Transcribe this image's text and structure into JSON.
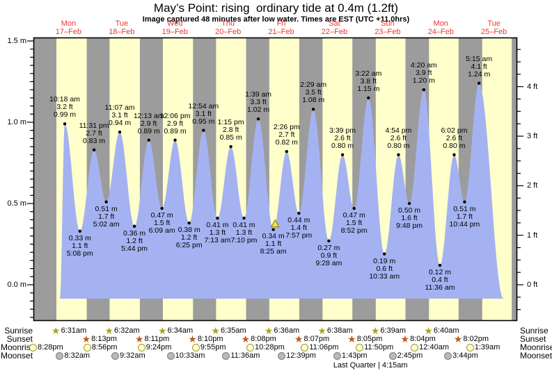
{
  "header": {
    "title": "May’s Point: rising  ordinary tide at 0.4m (1.2ft)",
    "subtitle": "Image captured 48 minutes after low water. Times are EST (UTC +11.0hrs)"
  },
  "chart_data": {
    "type": "area",
    "title": "May’s Point: rising  ordinary tide at 0.4m (1.2ft)",
    "ylabel_left": "metres",
    "ylabel_right": "feet",
    "ylim_m": [
      -0.22,
      1.52
    ],
    "grid": false,
    "y_axis_left_labels": [
      "1.5 m",
      "1.0 m",
      "0.5 m",
      "0.0 m"
    ],
    "y_axis_left_values": [
      1.5,
      1.0,
      0.5,
      0.0
    ],
    "y_axis_right_labels": [
      "4 ft",
      "3 ft",
      "2 ft",
      "1 ft",
      "0 ft"
    ],
    "y_axis_right_values": [
      4,
      3,
      2,
      1,
      0
    ],
    "days": [
      {
        "name": "Mon",
        "date": "17–Feb"
      },
      {
        "name": "Tue",
        "date": "18–Feb"
      },
      {
        "name": "Wed",
        "date": "19–Feb"
      },
      {
        "name": "Thu",
        "date": "20–Feb"
      },
      {
        "name": "Fri",
        "date": "21–Feb"
      },
      {
        "name": "Sat",
        "date": "22–Feb"
      },
      {
        "name": "Sun",
        "date": "23–Feb"
      },
      {
        "name": "Mon",
        "date": "24–Feb"
      },
      {
        "name": "Tue",
        "date": "25–Feb"
      }
    ],
    "tide_events": [
      {
        "day": 0,
        "time": "10:18 am",
        "ft": 3.2,
        "m": 0.99,
        "type": "high"
      },
      {
        "day": 0,
        "time": "5:08 pm",
        "ft": 1.1,
        "m": 0.33,
        "type": "low"
      },
      {
        "day": 0,
        "time": "11:31 pm",
        "ft": 2.7,
        "m": 0.83,
        "type": "high"
      },
      {
        "day": 1,
        "time": "5:02 am",
        "ft": 1.7,
        "m": 0.51,
        "type": "low"
      },
      {
        "day": 1,
        "time": "11:07 am",
        "ft": 3.1,
        "m": 0.94,
        "type": "high"
      },
      {
        "day": 1,
        "time": "5:44 pm",
        "ft": 1.2,
        "m": 0.36,
        "type": "low"
      },
      {
        "day": 2,
        "time": "12:13 am",
        "ft": 2.9,
        "m": 0.89,
        "type": "high"
      },
      {
        "day": 2,
        "time": "6:09 am",
        "ft": 1.5,
        "m": 0.47,
        "type": "low"
      },
      {
        "day": 2,
        "time": "12:06 pm",
        "ft": 2.9,
        "m": 0.89,
        "type": "high"
      },
      {
        "day": 2,
        "time": "6:25 pm",
        "ft": 1.2,
        "m": 0.38,
        "type": "low"
      },
      {
        "day": 3,
        "time": "12:54 am",
        "ft": 3.1,
        "m": 0.95,
        "type": "high"
      },
      {
        "day": 3,
        "time": "7:13 am",
        "ft": 1.3,
        "m": 0.41,
        "type": "low"
      },
      {
        "day": 3,
        "time": "1:15 pm",
        "ft": 2.8,
        "m": 0.85,
        "type": "high"
      },
      {
        "day": 3,
        "time": "7:10 pm",
        "ft": 1.3,
        "m": 0.41,
        "type": "low"
      },
      {
        "day": 4,
        "time": "1:39 am",
        "ft": 3.3,
        "m": 1.02,
        "type": "high"
      },
      {
        "day": 4,
        "time": "8:25 am",
        "ft": 1.1,
        "m": 0.34,
        "type": "low",
        "current": true
      },
      {
        "day": 4,
        "time": "2:26 pm",
        "ft": 2.7,
        "m": 0.82,
        "type": "high"
      },
      {
        "day": 4,
        "time": "7:57 pm",
        "ft": 1.4,
        "m": 0.44,
        "type": "low"
      },
      {
        "day": 5,
        "time": "2:29 am",
        "ft": 3.5,
        "m": 1.08,
        "type": "high"
      },
      {
        "day": 5,
        "time": "9:28 am",
        "ft": 0.9,
        "m": 0.27,
        "type": "low"
      },
      {
        "day": 5,
        "time": "3:39 pm",
        "ft": 2.6,
        "m": 0.8,
        "type": "high"
      },
      {
        "day": 5,
        "time": "8:52 pm",
        "ft": 1.5,
        "m": 0.47,
        "type": "low"
      },
      {
        "day": 6,
        "time": "3:22 am",
        "ft": 3.8,
        "m": 1.15,
        "type": "high"
      },
      {
        "day": 6,
        "time": "10:33 am",
        "ft": 0.6,
        "m": 0.19,
        "type": "low"
      },
      {
        "day": 6,
        "time": "4:54 pm",
        "ft": 2.6,
        "m": 0.8,
        "type": "high"
      },
      {
        "day": 6,
        "time": "9:48 pm",
        "ft": 1.6,
        "m": 0.5,
        "type": "low"
      },
      {
        "day": 7,
        "time": "4:20 am",
        "ft": 3.9,
        "m": 1.2,
        "type": "high"
      },
      {
        "day": 7,
        "time": "11:36 am",
        "ft": 0.4,
        "m": 0.12,
        "type": "low"
      },
      {
        "day": 7,
        "time": "6:02 pm",
        "ft": 2.6,
        "m": 0.8,
        "type": "high"
      },
      {
        "day": 7,
        "time": "10:44 pm",
        "ft": 1.7,
        "m": 0.51,
        "type": "low"
      },
      {
        "day": 8,
        "time": "5:15 am",
        "ft": 4.1,
        "m": 1.24,
        "type": "high"
      }
    ],
    "current_marker": {
      "minutes_after_low": 48,
      "at_low_time": "8:25 am",
      "at_low_day": 4
    }
  },
  "almanac": {
    "row_labels": [
      "Sunrise",
      "Sunset",
      "Moonrise",
      "Moonset"
    ],
    "sunrise": [
      {
        "day": 0,
        "time": "6:31am"
      },
      {
        "day": 1,
        "time": "6:32am"
      },
      {
        "day": 2,
        "time": "6:34am"
      },
      {
        "day": 3,
        "time": "6:35am"
      },
      {
        "day": 4,
        "time": "6:36am"
      },
      {
        "day": 5,
        "time": "6:38am"
      },
      {
        "day": 6,
        "time": "6:39am"
      },
      {
        "day": 7,
        "time": "6:40am"
      }
    ],
    "sunset": [
      {
        "day": 0,
        "time": "8:13pm"
      },
      {
        "day": 1,
        "time": "8:11pm"
      },
      {
        "day": 2,
        "time": "8:10pm"
      },
      {
        "day": 3,
        "time": "8:08pm"
      },
      {
        "day": 4,
        "time": "8:07pm"
      },
      {
        "day": 5,
        "time": "8:05pm"
      },
      {
        "day": 6,
        "time": "8:04pm"
      },
      {
        "day": 7,
        "time": "8:02pm"
      }
    ],
    "moonrise": [
      {
        "day": -1,
        "time": "8:28pm"
      },
      {
        "day": 0,
        "time": "8:56pm"
      },
      {
        "day": 1,
        "time": "9:24pm"
      },
      {
        "day": 2,
        "time": "9:55pm"
      },
      {
        "day": 3,
        "time": "10:28pm"
      },
      {
        "day": 4,
        "time": "11:06pm"
      },
      {
        "day": 5,
        "time": "11:50pm"
      },
      {
        "day": 7,
        "time": "12:40am"
      },
      {
        "day": 8,
        "time": "1:39am"
      }
    ],
    "moonset": [
      {
        "day": 0,
        "time": "8:32am"
      },
      {
        "day": 1,
        "time": "9:32am"
      },
      {
        "day": 2,
        "time": "10:33am"
      },
      {
        "day": 3,
        "time": "11:36am"
      },
      {
        "day": 4,
        "time": "12:39pm"
      },
      {
        "day": 5,
        "time": "1:43pm"
      },
      {
        "day": 6,
        "time": "2:45pm"
      },
      {
        "day": 7,
        "time": "3:44pm"
      }
    ],
    "moon_phase": {
      "label": "Last Quarter | 4:15am",
      "day": 6,
      "time": "4:15am"
    }
  },
  "colors": {
    "day_band": "#ffffcc",
    "night_band": "#9c9c9c",
    "tide_fill": "#a4b2f2",
    "date_red": "#ee3333",
    "sunrise_star": "#a8a023",
    "sunset_star": "#bc5b18",
    "moonrise_fill": "#ffffcc",
    "moonrise_border": "#9b9436",
    "moonset_fill": "#b9b9b9",
    "moonset_border": "#7d7d7d",
    "marker_fill": "#f4e13e",
    "marker_border": "#8f861f",
    "frame": "#000000"
  }
}
